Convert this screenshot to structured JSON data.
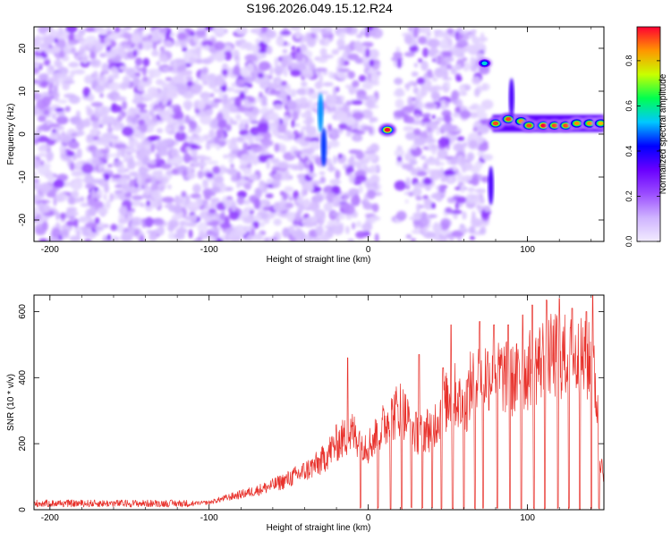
{
  "chart_data": [
    {
      "type": "heatmap",
      "title": "S196.2026.049.15.12.R24",
      "xlabel": "Height of straight line (km)",
      "ylabel": "Frequency (Hz)",
      "xlim": [
        -210,
        148
      ],
      "ylim": [
        -25,
        25
      ],
      "xticks": [
        -200,
        -100,
        0,
        100
      ],
      "yticks": [
        -20,
        -10,
        0,
        10,
        20
      ],
      "colorbar": {
        "label": "Normalized spectral amplitude",
        "range": [
          0,
          0.95
        ],
        "ticks": [
          0.0,
          0.2,
          0.4,
          0.6,
          0.8
        ],
        "colormap": [
          "#f2ecff",
          "#cfb3ff",
          "#9a4dff",
          "#6a00ff",
          "#0000ff",
          "#00c8ff",
          "#00ff50",
          "#c8ff00",
          "#ff9600",
          "#ff0032"
        ]
      },
      "noise_region_km": [
        -210,
        75
      ],
      "data_gaps_km": [
        [
          6,
          18
        ],
        [
          21,
          24
        ],
        [
          62,
          64
        ],
        [
          75,
          78
        ]
      ],
      "features": [
        {
          "x": 12,
          "y": 1.0,
          "amp": 0.95,
          "label": "narrow tone"
        },
        {
          "x": 73,
          "y": 16.5,
          "amp": 0.55,
          "label": "tone"
        },
        {
          "x": 80,
          "y": 2.5,
          "amp": 0.9
        },
        {
          "x": 88,
          "y": 3.5,
          "amp": 0.9
        },
        {
          "x": 96,
          "y": 3.0,
          "amp": 0.85
        },
        {
          "x": 101,
          "y": 2.0,
          "amp": 0.9
        },
        {
          "x": 110,
          "y": 2.0,
          "amp": 0.95
        },
        {
          "x": 117,
          "y": 2.0,
          "amp": 0.9
        },
        {
          "x": 124,
          "y": 2.0,
          "amp": 0.9
        },
        {
          "x": 131,
          "y": 2.5,
          "amp": 0.85
        },
        {
          "x": 139,
          "y": 2.5,
          "amp": 0.85
        },
        {
          "x": 146,
          "y": 2.5,
          "amp": 0.8
        },
        {
          "x": -30,
          "y": 5.0,
          "amp": 0.5,
          "label": "streak"
        },
        {
          "x": -28,
          "y": -3.0,
          "amp": 0.45,
          "label": "streak"
        },
        {
          "x": 90,
          "y": 8.5,
          "amp": 0.35,
          "label": "streak"
        },
        {
          "x": 77,
          "y": -12.0,
          "amp": 0.35,
          "label": "streak"
        }
      ]
    },
    {
      "type": "line",
      "xlabel": "Height of straight line (km)",
      "ylabel": "SNR (10 * v/v)",
      "xlim": [
        -210,
        148
      ],
      "ylim": [
        0,
        650
      ],
      "xticks": [
        -200,
        -100,
        0,
        100
      ],
      "yticks": [
        0,
        200,
        400,
        600
      ],
      "color": "#e8322c",
      "series": [
        {
          "name": "SNR",
          "envelope": [
            {
              "x": -210,
              "y": 18
            },
            {
              "x": -120,
              "y": 22
            },
            {
              "x": -100,
              "y": 28
            },
            {
              "x": -90,
              "y": 45
            },
            {
              "x": -80,
              "y": 60
            },
            {
              "x": -70,
              "y": 75
            },
            {
              "x": -60,
              "y": 95
            },
            {
              "x": -50,
              "y": 120
            },
            {
              "x": -40,
              "y": 150
            },
            {
              "x": -30,
              "y": 185
            },
            {
              "x": -20,
              "y": 260
            },
            {
              "x": -10,
              "y": 300
            },
            {
              "x": 0,
              "y": 250
            },
            {
              "x": 10,
              "y": 330
            },
            {
              "x": 20,
              "y": 400
            },
            {
              "x": 30,
              "y": 300
            },
            {
              "x": 40,
              "y": 320
            },
            {
              "x": 50,
              "y": 430
            },
            {
              "x": 55,
              "y": 450
            },
            {
              "x": 60,
              "y": 380
            },
            {
              "x": 65,
              "y": 500
            },
            {
              "x": 70,
              "y": 520
            },
            {
              "x": 80,
              "y": 540
            },
            {
              "x": 90,
              "y": 500
            },
            {
              "x": 100,
              "y": 540
            },
            {
              "x": 110,
              "y": 590
            },
            {
              "x": 120,
              "y": 600
            },
            {
              "x": 130,
              "y": 590
            },
            {
              "x": 140,
              "y": 570
            },
            {
              "x": 143,
              "y": 470
            },
            {
              "x": 146,
              "y": 190
            },
            {
              "x": 148,
              "y": 110
            }
          ],
          "spikes": [
            {
              "x": -13,
              "y": 460
            },
            {
              "x": 32,
              "y": 470
            },
            {
              "x": 47,
              "y": 430
            },
            {
              "x": 52,
              "y": 560
            },
            {
              "x": 70,
              "y": 570
            },
            {
              "x": 79,
              "y": 560
            },
            {
              "x": 88,
              "y": 560
            },
            {
              "x": 97,
              "y": 590
            },
            {
              "x": 103,
              "y": 620
            },
            {
              "x": 112,
              "y": 635
            },
            {
              "x": 120,
              "y": 640
            },
            {
              "x": 128,
              "y": 610
            },
            {
              "x": 137,
              "y": 600
            },
            {
              "x": 141,
              "y": 650
            }
          ],
          "dips_to_zero_km": [
            -5,
            6,
            14,
            21,
            27,
            34,
            40,
            46,
            53,
            60,
            67,
            72,
            81,
            89,
            96,
            104,
            111,
            119,
            126,
            133,
            140,
            145
          ]
        }
      ]
    }
  ]
}
